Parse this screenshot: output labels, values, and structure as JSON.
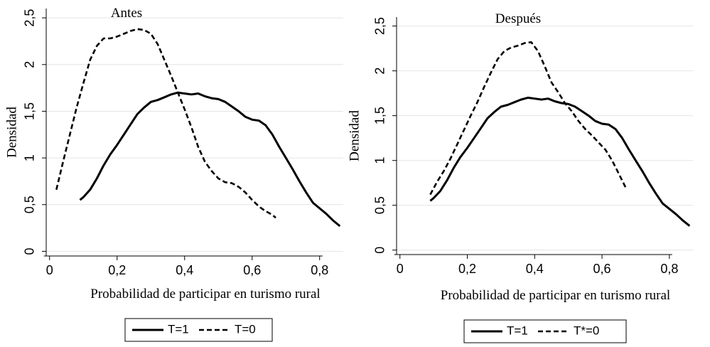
{
  "chart_data": [
    {
      "type": "line",
      "title": "Antes",
      "xlabel": "Probabilidad de participar en turismo rural",
      "ylabel": "Densidad",
      "xlim": [
        -0.01,
        0.87
      ],
      "ylim": [
        -0.05,
        2.6
      ],
      "xticks": [
        0,
        0.2,
        0.4,
        0.6,
        0.8
      ],
      "xtick_labels": [
        "0",
        "0,2",
        "0,4",
        "0,6",
        "0,8"
      ],
      "yticks": [
        0,
        0.5,
        1,
        1.5,
        2,
        2.5
      ],
      "ytick_labels": [
        "0",
        "0,5",
        "1",
        "1,5",
        "2",
        "2,5"
      ],
      "grid": true,
      "legend": "bottom",
      "series": [
        {
          "name": "T=1",
          "style": "solid",
          "points": [
            [
              0.09,
              0.55
            ],
            [
              0.1,
              0.58
            ],
            [
              0.12,
              0.66
            ],
            [
              0.14,
              0.78
            ],
            [
              0.16,
              0.92
            ],
            [
              0.18,
              1.04
            ],
            [
              0.2,
              1.14
            ],
            [
              0.22,
              1.25
            ],
            [
              0.24,
              1.36
            ],
            [
              0.26,
              1.47
            ],
            [
              0.28,
              1.54
            ],
            [
              0.3,
              1.6
            ],
            [
              0.32,
              1.62
            ],
            [
              0.34,
              1.65
            ],
            [
              0.36,
              1.68
            ],
            [
              0.38,
              1.7
            ],
            [
              0.4,
              1.69
            ],
            [
              0.42,
              1.68
            ],
            [
              0.44,
              1.69
            ],
            [
              0.46,
              1.66
            ],
            [
              0.48,
              1.64
            ],
            [
              0.5,
              1.63
            ],
            [
              0.52,
              1.6
            ],
            [
              0.54,
              1.55
            ],
            [
              0.56,
              1.5
            ],
            [
              0.58,
              1.44
            ],
            [
              0.6,
              1.41
            ],
            [
              0.62,
              1.4
            ],
            [
              0.64,
              1.35
            ],
            [
              0.66,
              1.25
            ],
            [
              0.68,
              1.12
            ],
            [
              0.7,
              1.0
            ],
            [
              0.72,
              0.88
            ],
            [
              0.74,
              0.75
            ],
            [
              0.76,
              0.63
            ],
            [
              0.78,
              0.52
            ],
            [
              0.8,
              0.46
            ],
            [
              0.82,
              0.4
            ],
            [
              0.84,
              0.33
            ],
            [
              0.86,
              0.27
            ]
          ]
        },
        {
          "name": "T=0",
          "style": "dashed",
          "points": [
            [
              0.02,
              0.66
            ],
            [
              0.04,
              0.96
            ],
            [
              0.06,
              1.25
            ],
            [
              0.08,
              1.54
            ],
            [
              0.1,
              1.8
            ],
            [
              0.12,
              2.05
            ],
            [
              0.14,
              2.2
            ],
            [
              0.16,
              2.28
            ],
            [
              0.18,
              2.28
            ],
            [
              0.2,
              2.3
            ],
            [
              0.22,
              2.33
            ],
            [
              0.24,
              2.36
            ],
            [
              0.26,
              2.38
            ],
            [
              0.28,
              2.37
            ],
            [
              0.3,
              2.33
            ],
            [
              0.32,
              2.22
            ],
            [
              0.34,
              2.05
            ],
            [
              0.36,
              1.88
            ],
            [
              0.38,
              1.7
            ],
            [
              0.4,
              1.52
            ],
            [
              0.42,
              1.33
            ],
            [
              0.44,
              1.12
            ],
            [
              0.46,
              0.96
            ],
            [
              0.48,
              0.86
            ],
            [
              0.5,
              0.78
            ],
            [
              0.52,
              0.74
            ],
            [
              0.54,
              0.73
            ],
            [
              0.56,
              0.69
            ],
            [
              0.58,
              0.63
            ],
            [
              0.6,
              0.55
            ],
            [
              0.62,
              0.48
            ],
            [
              0.64,
              0.43
            ],
            [
              0.66,
              0.39
            ],
            [
              0.67,
              0.36
            ]
          ]
        }
      ]
    },
    {
      "type": "line",
      "title": "Después",
      "xlabel": "Probabilidad de participar en turismo rural",
      "ylabel": "Densidad",
      "xlim": [
        -0.01,
        0.87
      ],
      "ylim": [
        -0.05,
        2.6
      ],
      "xticks": [
        0,
        0.2,
        0.4,
        0.6,
        0.8
      ],
      "xtick_labels": [
        "0",
        "0,2",
        "0,4",
        "0,6",
        "0,8"
      ],
      "yticks": [
        0,
        0.5,
        1,
        1.5,
        2,
        2.5
      ],
      "ytick_labels": [
        "0",
        "0,5",
        "1",
        "1,5",
        "2",
        "2,5"
      ],
      "grid": true,
      "legend": "bottom",
      "series": [
        {
          "name": "T=1",
          "style": "solid",
          "points": [
            [
              0.09,
              0.55
            ],
            [
              0.1,
              0.58
            ],
            [
              0.12,
              0.66
            ],
            [
              0.14,
              0.78
            ],
            [
              0.16,
              0.92
            ],
            [
              0.18,
              1.04
            ],
            [
              0.2,
              1.14
            ],
            [
              0.22,
              1.25
            ],
            [
              0.24,
              1.36
            ],
            [
              0.26,
              1.47
            ],
            [
              0.28,
              1.54
            ],
            [
              0.3,
              1.6
            ],
            [
              0.32,
              1.62
            ],
            [
              0.34,
              1.65
            ],
            [
              0.36,
              1.68
            ],
            [
              0.38,
              1.7
            ],
            [
              0.4,
              1.69
            ],
            [
              0.42,
              1.68
            ],
            [
              0.44,
              1.69
            ],
            [
              0.46,
              1.66
            ],
            [
              0.48,
              1.64
            ],
            [
              0.5,
              1.63
            ],
            [
              0.52,
              1.6
            ],
            [
              0.54,
              1.55
            ],
            [
              0.56,
              1.5
            ],
            [
              0.58,
              1.44
            ],
            [
              0.6,
              1.41
            ],
            [
              0.62,
              1.4
            ],
            [
              0.64,
              1.35
            ],
            [
              0.66,
              1.25
            ],
            [
              0.68,
              1.12
            ],
            [
              0.7,
              1.0
            ],
            [
              0.72,
              0.88
            ],
            [
              0.74,
              0.75
            ],
            [
              0.76,
              0.63
            ],
            [
              0.78,
              0.52
            ],
            [
              0.8,
              0.46
            ],
            [
              0.82,
              0.4
            ],
            [
              0.84,
              0.33
            ],
            [
              0.86,
              0.27
            ]
          ]
        },
        {
          "name": "T*=0",
          "style": "dashed",
          "points": [
            [
              0.09,
              0.62
            ],
            [
              0.11,
              0.76
            ],
            [
              0.13,
              0.88
            ],
            [
              0.15,
              1.02
            ],
            [
              0.17,
              1.18
            ],
            [
              0.19,
              1.34
            ],
            [
              0.21,
              1.5
            ],
            [
              0.23,
              1.65
            ],
            [
              0.25,
              1.82
            ],
            [
              0.27,
              1.98
            ],
            [
              0.29,
              2.13
            ],
            [
              0.31,
              2.22
            ],
            [
              0.33,
              2.26
            ],
            [
              0.35,
              2.28
            ],
            [
              0.37,
              2.31
            ],
            [
              0.39,
              2.32
            ],
            [
              0.41,
              2.22
            ],
            [
              0.43,
              2.05
            ],
            [
              0.45,
              1.87
            ],
            [
              0.47,
              1.76
            ],
            [
              0.49,
              1.64
            ],
            [
              0.51,
              1.55
            ],
            [
              0.53,
              1.44
            ],
            [
              0.55,
              1.35
            ],
            [
              0.57,
              1.28
            ],
            [
              0.59,
              1.2
            ],
            [
              0.61,
              1.12
            ],
            [
              0.63,
              1.0
            ],
            [
              0.65,
              0.85
            ],
            [
              0.67,
              0.7
            ]
          ]
        }
      ]
    }
  ]
}
